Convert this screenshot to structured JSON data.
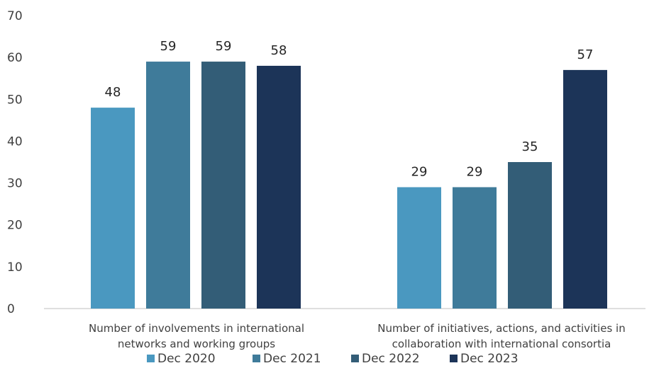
{
  "chart_data": {
    "type": "bar",
    "categories": [
      [
        "Number of involvements in international",
        "networks and working groups"
      ],
      [
        "Number of initiatives, actions, and activities in",
        "collaboration with international consortia"
      ]
    ],
    "series": [
      {
        "name": "Dec 2020",
        "color": "#4a98c0",
        "values": [
          48,
          29
        ]
      },
      {
        "name": "Dec 2021",
        "color": "#3f7b9a",
        "values": [
          59,
          29
        ]
      },
      {
        "name": "Dec 2022",
        "color": "#335d77",
        "values": [
          59,
          35
        ]
      },
      {
        "name": "Dec 2023",
        "color": "#1c3458",
        "values": [
          58,
          57
        ]
      }
    ],
    "yticks": [
      "0",
      "10",
      "20",
      "30",
      "40",
      "50",
      "60",
      "70"
    ],
    "ylim": [
      0,
      70
    ],
    "grid": false,
    "legend_position": "bottom",
    "title": "",
    "xlabel": "",
    "ylabel": ""
  }
}
